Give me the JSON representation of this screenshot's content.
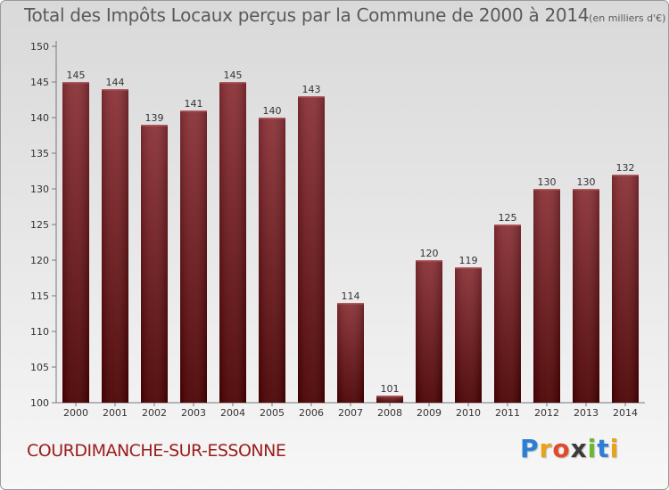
{
  "title": "Total des Impôts Locaux perçus par la Commune de 2000 à 2014",
  "unit": "(en milliers d'€)",
  "commune": "COURDIMANCHE-SUR-ESSONNE",
  "logo": {
    "letters": [
      "P",
      "r",
      "o",
      "x",
      "i",
      "t",
      "i"
    ],
    "colors": [
      "#2a7fd4",
      "#e8a317",
      "#e04a2a",
      "#3a3a3a",
      "#6ab82e",
      "#2a7fd4",
      "#e8a317"
    ]
  },
  "colors": {
    "bar_top": "#8a3035",
    "bar_bottom": "#4a0000",
    "commune": "#9b1c1c"
  },
  "chart_data": {
    "type": "bar",
    "title": "Total des Impôts Locaux perçus par la Commune de 2000 à 2014",
    "categories": [
      "2000",
      "2001",
      "2002",
      "2003",
      "2004",
      "2005",
      "2006",
      "2007",
      "2008",
      "2009",
      "2010",
      "2011",
      "2012",
      "2013",
      "2014"
    ],
    "values": [
      145,
      144,
      139,
      141,
      145,
      140,
      143,
      114,
      101,
      120,
      119,
      125,
      130,
      130,
      132
    ],
    "yticks": [
      100,
      105,
      110,
      115,
      120,
      125,
      130,
      135,
      140,
      145,
      150
    ],
    "ylim": [
      100,
      150
    ],
    "grid": false,
    "legend": "none"
  }
}
